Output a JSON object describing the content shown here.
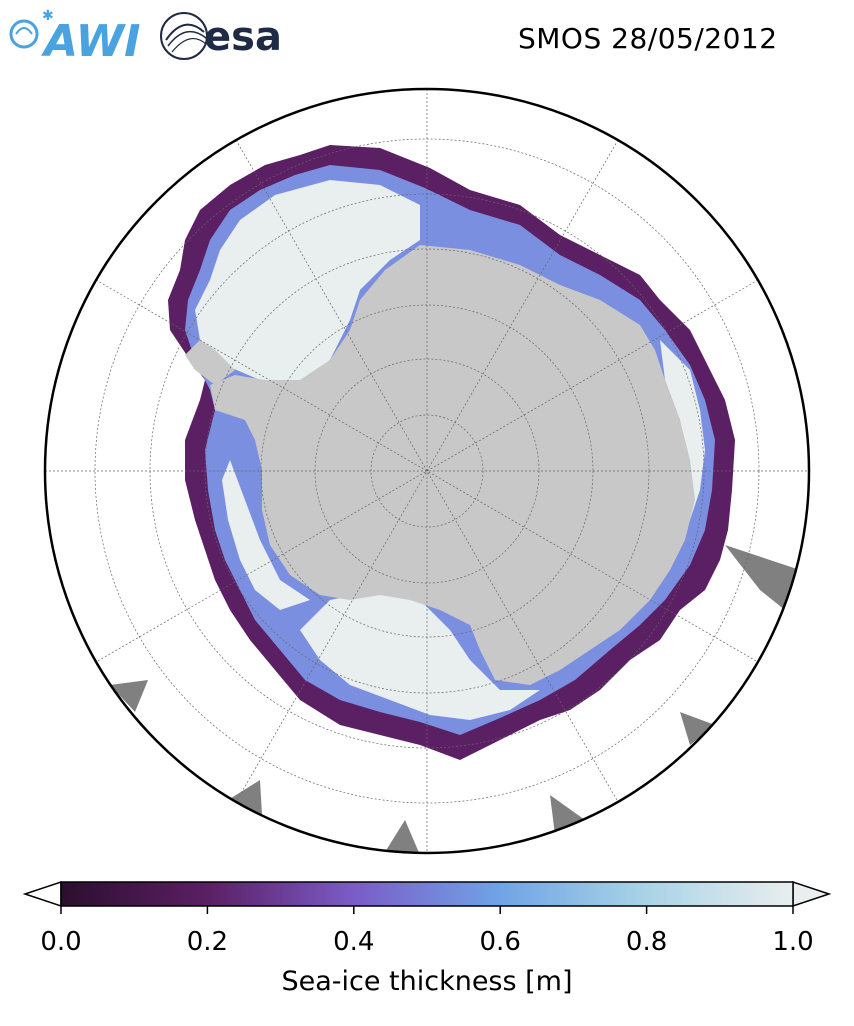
{
  "header": {
    "title": "SMOS 28/05/2012",
    "logo_left_text": "AWI",
    "logo_right_text": "esa",
    "logo_left_color": "#4aa3df",
    "logo_right_color": "#1f2a44"
  },
  "map": {
    "projection": "south-polar-stereographic",
    "graticule": true,
    "land_color": "#c8c8c8",
    "no_data_color": "#808080",
    "ocean_color": "#ffffff"
  },
  "colorbar": {
    "label": "Sea-ice thickness [m]",
    "min": 0.0,
    "max": 1.0,
    "extend": "both",
    "ticks": [
      "0.0",
      "0.2",
      "0.4",
      "0.6",
      "0.8",
      "1.0"
    ],
    "colors": [
      "#2b0f2e",
      "#5b1f63",
      "#7b5cc8",
      "#6fa4e6",
      "#a9d4e6",
      "#e9eeee"
    ]
  }
}
